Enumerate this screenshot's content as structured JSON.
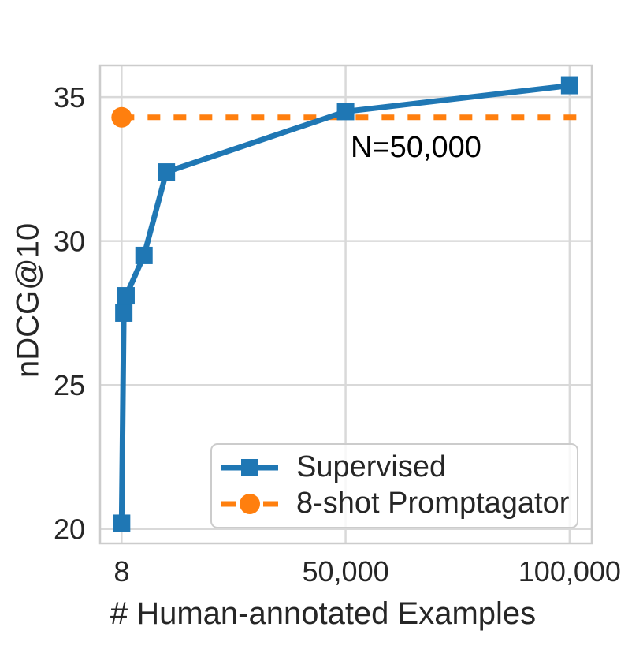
{
  "chart_data": {
    "type": "line",
    "title": "",
    "xlabel": "# Human-annotated Examples",
    "ylabel": "nDCG@10",
    "x_scale": "linear",
    "xlim": [
      -4800,
      104950
    ],
    "ylim": [
      19.5,
      36.1
    ],
    "grid": true,
    "grid_color": "#d9d9d9",
    "spine_color": "#cccccc",
    "text_color": "#262626",
    "background_color": "#ffffff",
    "x_ticks": [
      {
        "value": 8,
        "label": "8"
      },
      {
        "value": 50000,
        "label": "50,000"
      },
      {
        "value": 100000,
        "label": "100,000"
      }
    ],
    "y_ticks": [
      {
        "value": 20,
        "label": "20"
      },
      {
        "value": 25,
        "label": "25"
      },
      {
        "value": 30,
        "label": "30"
      },
      {
        "value": 35,
        "label": "35"
      }
    ],
    "series": [
      {
        "name": "Supervised",
        "color": "#1f77b4",
        "marker": "square",
        "line_style": "solid",
        "points": [
          [
            8,
            20.2
          ],
          [
            500,
            27.5
          ],
          [
            1000,
            28.1
          ],
          [
            5000,
            29.5
          ],
          [
            10000,
            32.4
          ],
          [
            50000,
            34.5
          ],
          [
            100000,
            35.4
          ]
        ]
      },
      {
        "name": "8-shot Promptagator",
        "color": "#ff7f0e",
        "marker": "circle",
        "line_style": "dashed",
        "points": [
          [
            8,
            34.3
          ],
          [
            104000,
            34.3
          ]
        ],
        "marker_points": [
          [
            8,
            34.3
          ]
        ]
      }
    ],
    "annotation": {
      "text": "N=50,000",
      "x": 51000,
      "y": 33.1
    },
    "legend": {
      "position": "lower right",
      "entries": [
        "Supervised",
        "8-shot Promptagator"
      ]
    }
  }
}
